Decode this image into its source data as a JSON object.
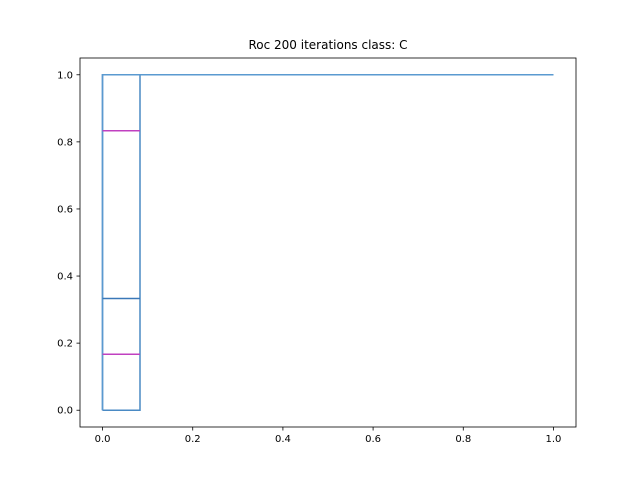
{
  "chart_data": {
    "type": "line",
    "title": "Roc 200 iterations class: C",
    "xlabel": "",
    "ylabel": "",
    "xlim": [
      -0.05,
      1.05
    ],
    "ylim": [
      -0.05,
      1.05
    ],
    "xticks": [
      0.0,
      0.2,
      0.4,
      0.6,
      0.8,
      1.0
    ],
    "xtick_labels": [
      "0.0",
      "0.2",
      "0.4",
      "0.6",
      "0.8",
      "1.0"
    ],
    "yticks": [
      0.0,
      0.2,
      0.4,
      0.6,
      0.8,
      1.0
    ],
    "ytick_labels": [
      "0.0",
      "0.2",
      "0.4",
      "0.6",
      "0.8",
      "1.0"
    ],
    "grid": false,
    "legend": "none",
    "series": [
      {
        "color": "#3a78b8",
        "x": [
          0,
          0,
          1
        ],
        "y": [
          0,
          1,
          1
        ]
      },
      {
        "color": "#4a8ac4",
        "x": [
          0,
          0.083,
          0.083,
          1
        ],
        "y": [
          0,
          0,
          1,
          1
        ]
      },
      {
        "color": "#5a9ad0",
        "x": [
          0,
          0,
          0.083,
          0.083,
          1
        ],
        "y": [
          0,
          1,
          1,
          1,
          1
        ]
      },
      {
        "color": "#3a78b8",
        "x": [
          0,
          0.083
        ],
        "y": [
          0.333,
          0.333
        ]
      },
      {
        "color": "#c040c0",
        "x": [
          0,
          0.083
        ],
        "y": [
          0.833,
          0.833
        ]
      },
      {
        "color": "#c040c0",
        "x": [
          0,
          0.083
        ],
        "y": [
          0.167,
          0.167
        ]
      }
    ]
  }
}
